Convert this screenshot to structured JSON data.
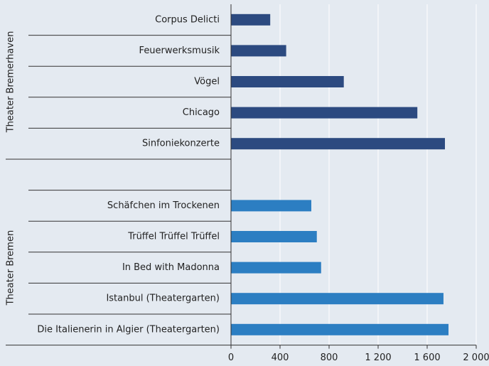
{
  "chart_data": {
    "type": "bar",
    "orientation": "horizontal",
    "groups": [
      {
        "name": "Theater Bremerhaven",
        "color": "#2c4a80",
        "categories": [
          "Corpus Delicti",
          "Feuerwerksmusik",
          "Vögel",
          "Chicago",
          "Sinfoniekonzerte"
        ],
        "values": [
          320,
          450,
          920,
          1520,
          1745
        ]
      },
      {
        "name": "Theater Bremen",
        "color": "#2c7ec2",
        "categories": [
          "Schäfchen im Trockenen",
          "Trüffel Trüffel Trüffel",
          "In Bed with Madonna",
          "Istanbul (Theatergarten)",
          "Die Italienerin in Algier (Theatergarten)"
        ],
        "values": [
          655,
          700,
          735,
          1733,
          1774
        ]
      }
    ],
    "xlim": [
      0,
      2000
    ],
    "xticks": [
      0,
      400,
      800,
      {
        "value": 1200,
        "label": "1 200"
      },
      {
        "value": 1600,
        "label": "1 600"
      },
      {
        "value": 2000,
        "label": "2 000"
      }
    ],
    "grid": true
  }
}
